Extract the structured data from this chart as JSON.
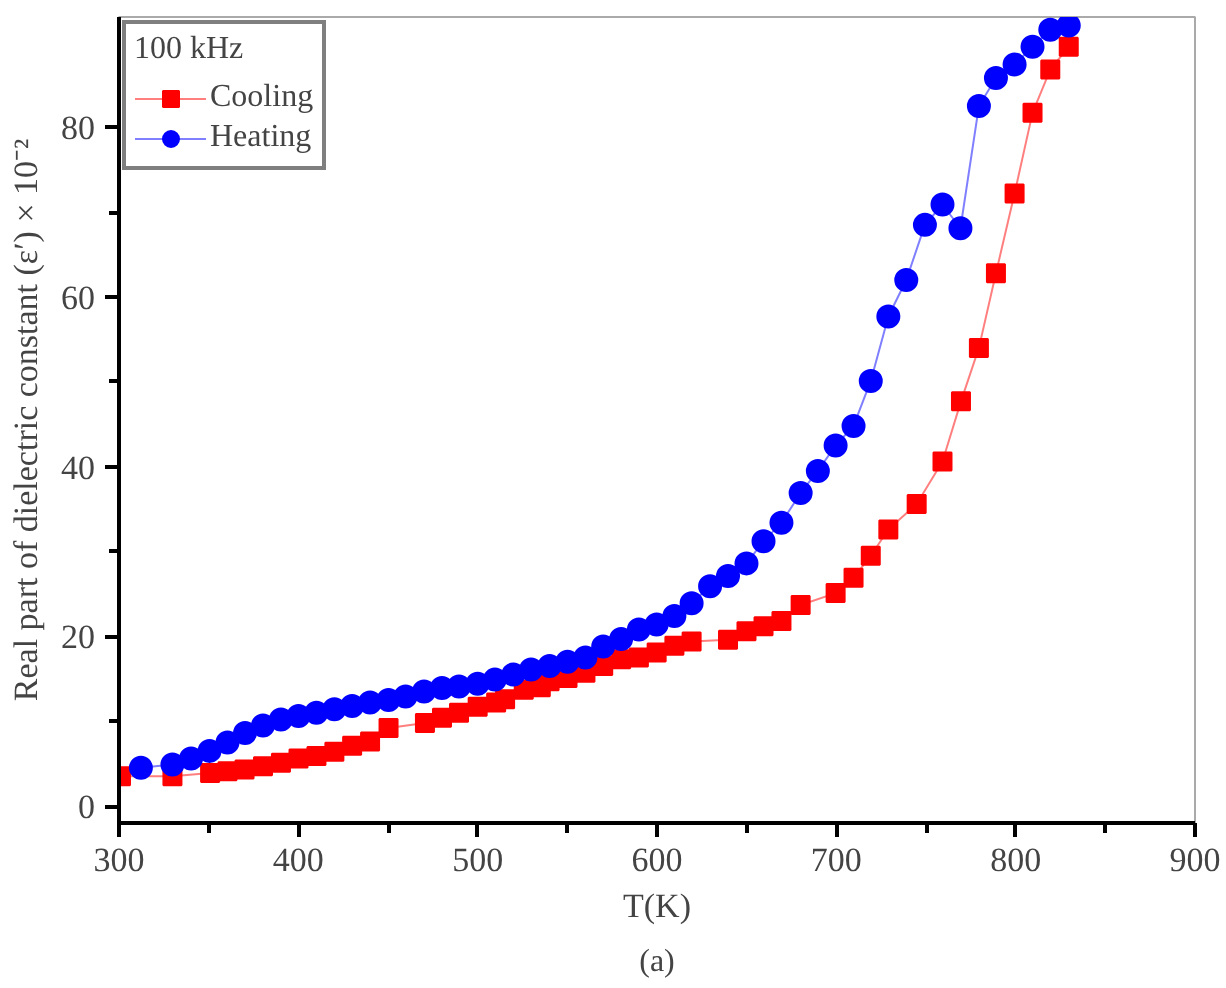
{
  "chart_data": {
    "type": "line",
    "xlabel": "T(K)",
    "ylabel": "Real part of dielectric constant (ε′) × 10⁻²",
    "legend_title": "100 kHz",
    "legend": "top left",
    "grid": false,
    "xlim": [
      300,
      900
    ],
    "xticks": [
      300,
      400,
      500,
      600,
      700,
      800,
      900
    ],
    "ylim": [
      -2,
      93
    ],
    "yticks": [
      0,
      20,
      40,
      60,
      80
    ],
    "annotations": [
      "(a)"
    ],
    "series": [
      {
        "name": "Cooling",
        "color": "#ff0000",
        "marker": "square",
        "x": [
          301.1,
          329.8,
          350.8,
          360.5,
          370,
          380.3,
          390.3,
          400.1,
          410.1,
          420.1,
          430,
          440,
          450.3,
          470.6,
          480.1,
          489.6,
          500,
          510.3,
          515.3,
          525.7,
          535.2,
          540.1,
          550.1,
          560.1,
          570,
          580,
          589.9,
          599.8,
          609.7,
          619.3,
          639.6,
          649.9,
          659.4,
          669.4,
          680.1,
          699.6,
          709.6,
          719.2,
          729,
          744.8,
          759.2,
          769.5,
          779.5,
          789,
          799.4,
          809.4,
          819.3,
          829.6
        ],
        "values": [
          3.5,
          3.5,
          3.9,
          4.1,
          4.3,
          4.7,
          5.1,
          5.6,
          5.9,
          6.4,
          7.1,
          7.6,
          9.2,
          9.8,
          10.4,
          11.0,
          11.7,
          12.2,
          12.6,
          13.7,
          14.0,
          14.7,
          15.1,
          15.7,
          16.5,
          17.3,
          17.5,
          18.1,
          18.9,
          19.4,
          19.6,
          20.6,
          21.2,
          21.8,
          23.7,
          25.1,
          26.9,
          29.5,
          32.6,
          35.6,
          40.6,
          47.7,
          54.0,
          62.8,
          72.2,
          81.7,
          86.8,
          89.5
        ]
      },
      {
        "name": "Heating",
        "color": "#0000ff",
        "marker": "circle",
        "x": [
          312.2,
          329.8,
          340.2,
          350.5,
          360.5,
          370.3,
          380.3,
          390.3,
          400.1,
          410.1,
          420.1,
          430,
          440,
          450.3,
          459.8,
          470.1,
          480.1,
          489.6,
          500,
          509.6,
          519.9,
          529.8,
          540.1,
          550.1,
          560.1,
          570,
          580,
          589.9,
          599.8,
          609.7,
          619.3,
          629.6,
          639.6,
          649.9,
          659.4,
          669.4,
          680.1,
          689.7,
          699.6,
          709.6,
          719.2,
          729,
          739,
          749.4,
          759.2,
          769.2,
          779.5,
          789,
          799.4,
          809.4,
          819.3,
          829.6
        ],
        "values": [
          4.5,
          4.9,
          5.6,
          6.5,
          7.5,
          8.6,
          9.5,
          10.2,
          10.6,
          11.0,
          11.4,
          11.8,
          12.2,
          12.5,
          12.9,
          13.5,
          13.9,
          14.1,
          14.4,
          14.9,
          15.5,
          16.1,
          16.5,
          17.0,
          17.5,
          18.8,
          19.7,
          20.8,
          21.4,
          22.4,
          23.9,
          25.9,
          27.1,
          28.6,
          31.2,
          33.4,
          36.9,
          39.5,
          42.5,
          44.8,
          50.1,
          57.7,
          62.0,
          68.5,
          70.9,
          68.1,
          82.5,
          85.8,
          87.4,
          89.5,
          91.5,
          92.0
        ]
      }
    ]
  }
}
